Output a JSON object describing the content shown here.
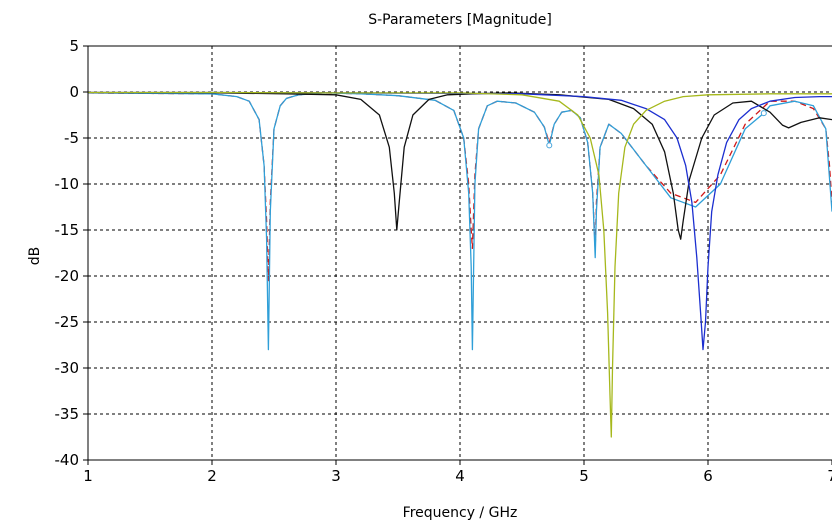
{
  "chart_data": {
    "type": "line",
    "title": "S-Parameters [Magnitude]",
    "xlabel": "Frequency / GHz",
    "ylabel": "dB",
    "xlim": [
      1,
      7
    ],
    "ylim": [
      -40,
      5
    ],
    "xticks": [
      1,
      2,
      3,
      4,
      5,
      6,
      7
    ],
    "yticks": [
      5,
      0,
      -5,
      -10,
      -15,
      -20,
      -25,
      -30,
      -35,
      -40
    ],
    "grid": true,
    "legend": "none",
    "series": [
      {
        "color": "#d01818",
        "dash": "6,4",
        "x": [
          1.0,
          1.5,
          2.0,
          2.2,
          2.3,
          2.38,
          2.42,
          2.44,
          2.455,
          2.47,
          2.5,
          2.55,
          2.6,
          2.7,
          2.9,
          3.2,
          3.5,
          3.8,
          3.95,
          4.03,
          4.07,
          4.09,
          4.1,
          4.12,
          4.15,
          4.22,
          4.3,
          4.45,
          4.6,
          4.68,
          4.72,
          4.76,
          4.82,
          4.9,
          4.97,
          5.03,
          5.07,
          5.09,
          5.1,
          5.13,
          5.2,
          5.3,
          5.5,
          5.7,
          5.9,
          6.1,
          6.3,
          6.5,
          6.7,
          6.85,
          6.95,
          6.98,
          7.0
        ],
        "y": [
          -0.1,
          -0.15,
          -0.2,
          -0.5,
          -1.0,
          -3.0,
          -8.0,
          -14.0,
          -20.5,
          -12.0,
          -4.0,
          -1.5,
          -0.7,
          -0.3,
          -0.1,
          -0.2,
          -0.4,
          -0.9,
          -2.0,
          -5.0,
          -10.0,
          -15.0,
          -17.0,
          -9.0,
          -4.0,
          -1.5,
          -1.0,
          -1.2,
          -2.2,
          -3.8,
          -5.5,
          -3.5,
          -2.2,
          -2.0,
          -2.8,
          -5.5,
          -11.0,
          -17.0,
          -12.0,
          -6.0,
          -3.5,
          -4.5,
          -8.0,
          -11.0,
          -12.0,
          -9.0,
          -3.5,
          -1.0,
          -1.0,
          -1.8,
          -4.0,
          -8.0,
          -12.0
        ]
      },
      {
        "color": "#2f9fd8",
        "dash": "",
        "x": [
          1.0,
          1.5,
          2.0,
          2.2,
          2.3,
          2.38,
          2.42,
          2.44,
          2.455,
          2.47,
          2.5,
          2.55,
          2.6,
          2.7,
          2.9,
          3.2,
          3.5,
          3.8,
          3.95,
          4.03,
          4.07,
          4.09,
          4.1,
          4.12,
          4.15,
          4.22,
          4.3,
          4.45,
          4.6,
          4.68,
          4.72,
          4.76,
          4.82,
          4.9,
          4.97,
          5.03,
          5.07,
          5.09,
          5.1,
          5.13,
          5.2,
          5.3,
          5.5,
          5.7,
          5.9,
          6.1,
          6.3,
          6.45,
          6.5,
          6.7,
          6.85,
          6.95,
          7.0
        ],
        "y": [
          -0.1,
          -0.15,
          -0.2,
          -0.5,
          -1.0,
          -3.0,
          -8.0,
          -16.0,
          -28.0,
          -13.0,
          -4.0,
          -1.5,
          -0.7,
          -0.3,
          -0.1,
          -0.2,
          -0.4,
          -0.9,
          -2.0,
          -5.0,
          -11.0,
          -19.0,
          -28.0,
          -10.0,
          -4.0,
          -1.5,
          -1.0,
          -1.2,
          -2.2,
          -3.8,
          -5.8,
          -3.5,
          -2.2,
          -2.0,
          -2.8,
          -5.5,
          -11.0,
          -18.0,
          -13.0,
          -6.0,
          -3.5,
          -4.5,
          -8.0,
          -11.5,
          -12.5,
          -10.0,
          -4.0,
          -2.3,
          -1.5,
          -1.0,
          -1.5,
          -4.0,
          -13.0
        ]
      },
      {
        "color": "#111111",
        "dash": "",
        "x": [
          1.0,
          2.0,
          2.6,
          3.0,
          3.2,
          3.35,
          3.43,
          3.47,
          3.49,
          3.51,
          3.55,
          3.62,
          3.75,
          3.9,
          4.1,
          4.4,
          4.8,
          5.2,
          5.4,
          5.55,
          5.65,
          5.72,
          5.76,
          5.78,
          5.8,
          5.85,
          5.95,
          6.05,
          6.2,
          6.35,
          6.5,
          6.6,
          6.65,
          6.75,
          6.9,
          7.0
        ],
        "y": [
          -0.05,
          -0.1,
          -0.2,
          -0.3,
          -0.8,
          -2.5,
          -6.0,
          -11.0,
          -15.0,
          -12.0,
          -6.0,
          -2.5,
          -0.8,
          -0.3,
          -0.2,
          -0.1,
          -0.3,
          -0.8,
          -1.8,
          -3.5,
          -6.5,
          -11.0,
          -15.0,
          -16.0,
          -14.0,
          -9.5,
          -5.0,
          -2.5,
          -1.2,
          -1.0,
          -2.2,
          -3.6,
          -3.9,
          -3.3,
          -2.8,
          -3.0
        ]
      },
      {
        "color": "#1c2fd0",
        "dash": "",
        "x": [
          1.0,
          2.0,
          3.0,
          4.0,
          4.5,
          5.0,
          5.3,
          5.5,
          5.65,
          5.75,
          5.82,
          5.87,
          5.91,
          5.94,
          5.96,
          5.98,
          6.0,
          6.03,
          6.08,
          6.15,
          6.25,
          6.35,
          6.5,
          6.7,
          6.9,
          7.0
        ],
        "y": [
          -0.05,
          -0.05,
          -0.1,
          -0.15,
          -0.2,
          -0.5,
          -0.9,
          -1.8,
          -3.0,
          -5.0,
          -8.0,
          -12.0,
          -18.0,
          -24.0,
          -28.0,
          -25.0,
          -19.0,
          -13.0,
          -9.0,
          -5.5,
          -3.0,
          -1.8,
          -1.0,
          -0.6,
          -0.5,
          -0.5
        ]
      },
      {
        "color": "#a6b81c",
        "dash": "",
        "x": [
          1.0,
          2.0,
          3.0,
          4.0,
          4.5,
          4.8,
          4.95,
          5.05,
          5.12,
          5.16,
          5.19,
          5.21,
          5.22,
          5.23,
          5.25,
          5.28,
          5.33,
          5.4,
          5.5,
          5.65,
          5.8,
          6.0,
          6.5,
          7.0
        ],
        "y": [
          -0.05,
          -0.05,
          -0.1,
          -0.1,
          -0.3,
          -1.0,
          -2.5,
          -5.0,
          -9.0,
          -15.0,
          -24.0,
          -33.0,
          -37.5,
          -30.0,
          -19.0,
          -11.0,
          -6.0,
          -3.5,
          -2.0,
          -1.0,
          -0.5,
          -0.3,
          -0.2,
          -0.2
        ]
      }
    ],
    "markers": [
      {
        "color": "#4aa6dc",
        "x": 4.72,
        "y": -5.8
      },
      {
        "color": "#4aa6dc",
        "x": 6.45,
        "y": -2.3
      }
    ]
  }
}
